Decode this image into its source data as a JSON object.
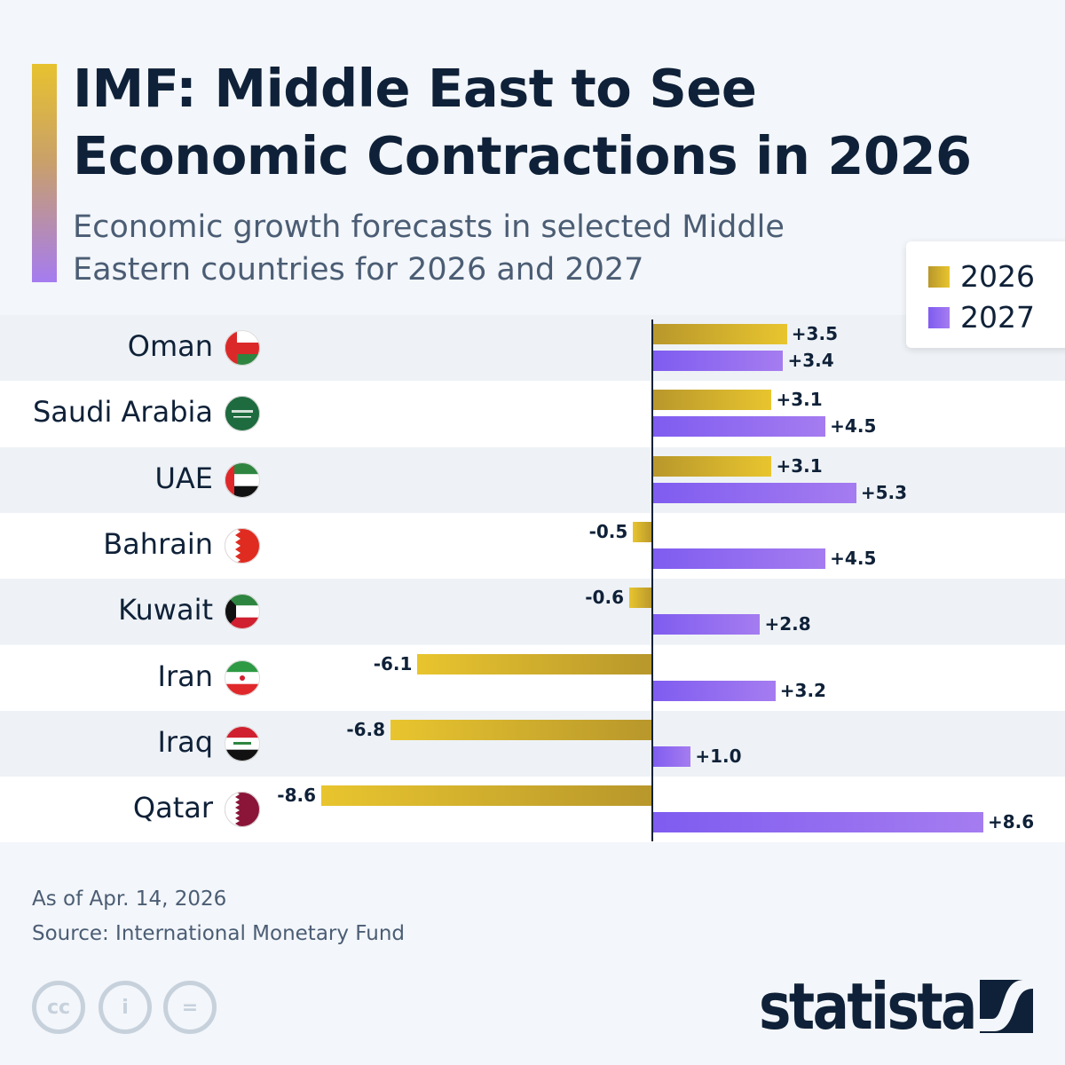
{
  "title": "IMF: Middle East to See Economic Contractions in 2026",
  "subtitle": "Economic growth forecasts in selected Middle Eastern countries for 2026 and 2027",
  "footer": {
    "date": "As of Apr. 14, 2026",
    "source": "Source: International Monetary Fund",
    "brand": "statista",
    "license_icons": [
      "cc-icon",
      "attribution-icon",
      "no-derivatives-icon"
    ]
  },
  "chart_data": {
    "type": "bar",
    "orientation": "horizontal",
    "categories": [
      "Oman",
      "Saudi Arabia",
      "UAE",
      "Bahrain",
      "Kuwait",
      "Iran",
      "Iraq",
      "Qatar"
    ],
    "series": [
      {
        "name": "2026",
        "values": [
          3.5,
          3.1,
          3.1,
          -0.5,
          -0.6,
          -6.1,
          -6.8,
          -8.6
        ],
        "labels": [
          "+3.5",
          "+3.1",
          "+3.1",
          "-0.5",
          "-0.6",
          "-6.1",
          "-6.8",
          "-8.6"
        ],
        "color": "#e6c22e"
      },
      {
        "name": "2027",
        "values": [
          3.4,
          4.5,
          5.3,
          4.5,
          2.8,
          3.2,
          1.0,
          8.6
        ],
        "labels": [
          "+3.4",
          "+4.5",
          "+5.3",
          "+4.5",
          "+2.8",
          "+3.2",
          "+1.0",
          "+8.6"
        ],
        "color": "#9a72f2"
      }
    ],
    "xlim": [
      -8.6,
      8.6
    ],
    "legend": "top-right",
    "grid": false,
    "flags": [
      "oman-flag-icon",
      "saudi-arabia-flag-icon",
      "uae-flag-icon",
      "bahrain-flag-icon",
      "kuwait-flag-icon",
      "iran-flag-icon",
      "iraq-flag-icon",
      "qatar-flag-icon"
    ]
  }
}
